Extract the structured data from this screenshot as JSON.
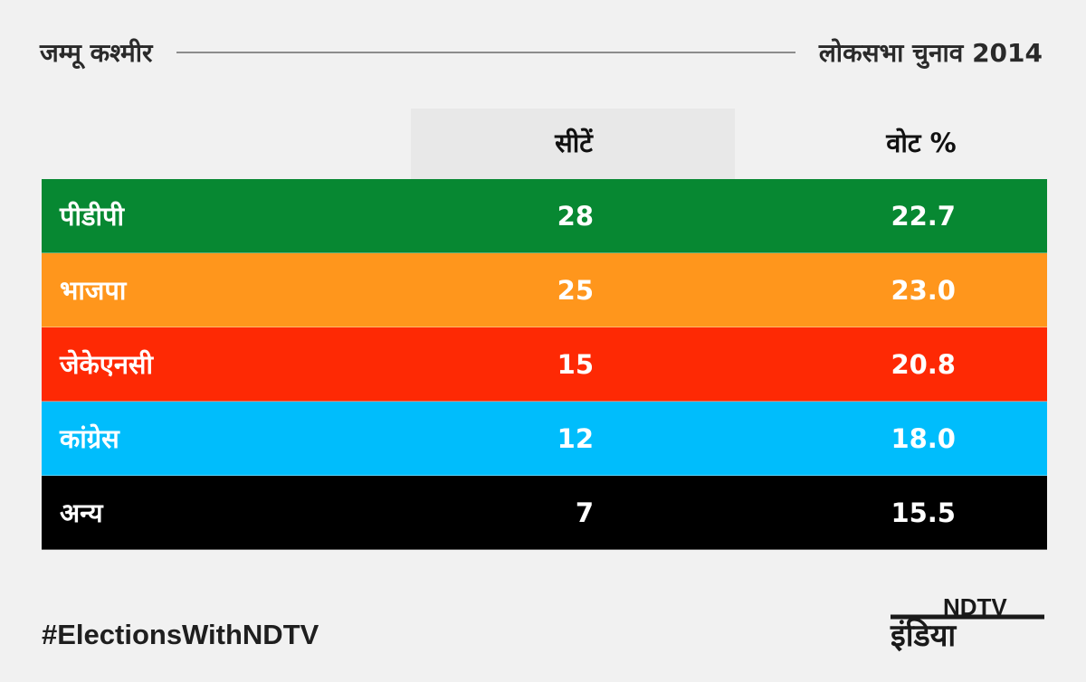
{
  "header": {
    "state": "जम्मू कश्मीर",
    "election": "लोकसभा चुनाव 2014"
  },
  "columns": {
    "seats": "सीटें",
    "votes": "वोट %"
  },
  "chart_data": {
    "type": "table",
    "columns": [
      "सीटें",
      "वोट %"
    ],
    "rows": [
      {
        "party": "पीडीपी",
        "seats": "28",
        "votes": "22.7",
        "color": "#078832"
      },
      {
        "party": "भाजपा",
        "seats": "25",
        "votes": "23.0",
        "color": "#ff961c"
      },
      {
        "party": "जेकेएनसी",
        "seats": "15",
        "votes": "20.8",
        "color": "#fe2904"
      },
      {
        "party": "कांग्रेस",
        "seats": "12",
        "votes": "18.0",
        "color": "#00bdfc"
      },
      {
        "party": "अन्य",
        "seats": "7",
        "votes": "15.5",
        "color": "#000000"
      }
    ]
  },
  "footer": {
    "hashtag": "#ElectionsWithNDTV",
    "logo_brand": "NDTV",
    "logo_script": "इंडिया"
  }
}
